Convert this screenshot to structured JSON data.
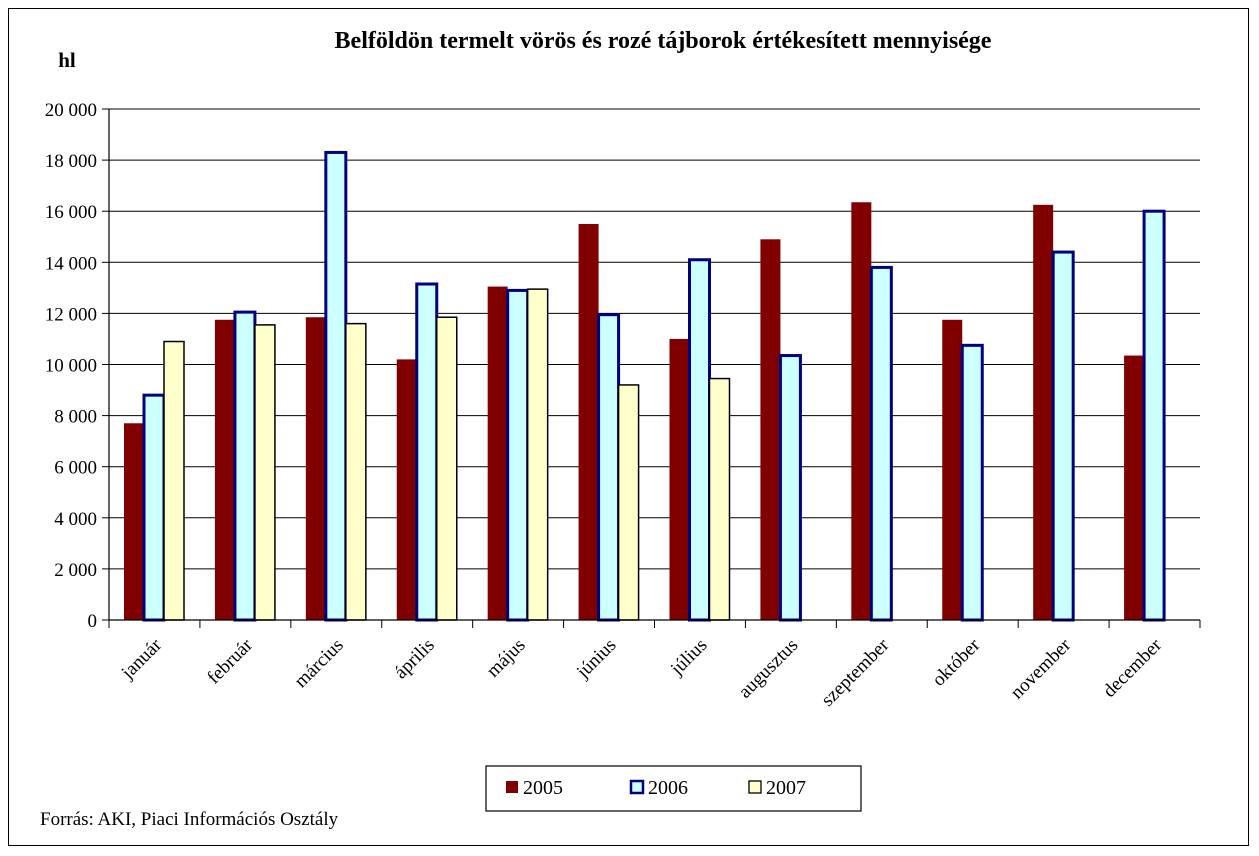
{
  "chart_data": {
    "type": "bar",
    "title": "Belföldön termelt vörös és rozé tájborok értékesített mennyisége",
    "ylabel": "hl",
    "xlabel": "",
    "ylim": [
      0,
      20000
    ],
    "yticks": [
      0,
      2000,
      4000,
      6000,
      8000,
      10000,
      12000,
      14000,
      16000,
      18000,
      20000
    ],
    "ytick_labels": [
      "0",
      "2 000",
      "4 000",
      "6 000",
      "8 000",
      "10 000",
      "12 000",
      "14 000",
      "16 000",
      "18 000",
      "20 000"
    ],
    "grid": true,
    "legend": "bottom-center",
    "categories": [
      "január",
      "február",
      "március",
      "április",
      "május",
      "június",
      "július",
      "augusztus",
      "szeptember",
      "október",
      "november",
      "december"
    ],
    "series": [
      {
        "name": "2005",
        "color": "#800000",
        "values": [
          7700,
          11750,
          11850,
          10200,
          13050,
          15500,
          11000,
          14900,
          16350,
          11750,
          16250,
          10350
        ]
      },
      {
        "name": "2006",
        "color": "#ccffff",
        "stroke": "#000080",
        "values": [
          8800,
          12050,
          18300,
          13150,
          12900,
          11950,
          14100,
          10350,
          13800,
          10750,
          14400,
          16000
        ]
      },
      {
        "name": "2007",
        "color": "#ffffcc",
        "stroke": "#000000",
        "values": [
          10900,
          11550,
          11600,
          11850,
          12950,
          9200,
          9450,
          null,
          null,
          null,
          null,
          null
        ]
      }
    ],
    "source": "Forrás: AKI, Piaci Információs Osztály"
  }
}
